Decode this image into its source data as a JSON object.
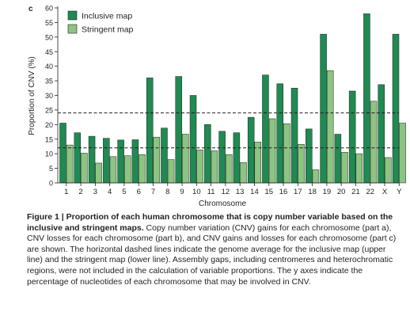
{
  "panel_label": "c",
  "caption": {
    "lead": "Figure 1",
    "separator": " | ",
    "title": "Proportion of each human chromosome that is copy number variable based on the inclusive and stringent maps.",
    "body": "Copy number variation (CNV) gains for each chromosome (part a), CNV losses for each chromosome (part b), and CNV gains and losses for each chromosome (part c) are shown. The horizontal dashed lines indicate the genome average for the inclusive map (upper line) and the stringent map (lower line). Assembly gaps, including centromeres and heterochromatic regions, were not included in the calculation of variable proportions. The y axes indicate the percentage of nucleotides of each chromosome that may be involved in CNV."
  },
  "colors": {
    "inclusive": "#1f8a52",
    "stringent": "#8cc481",
    "text": "#231f20"
  },
  "chart_data": {
    "type": "bar",
    "xlabel": "Chromosome",
    "ylabel": "Proportion of CNV (%)",
    "ylim": [
      0,
      60
    ],
    "yticks": [
      0,
      5,
      10,
      15,
      20,
      25,
      30,
      35,
      40,
      45,
      50,
      55,
      60
    ],
    "categories": [
      "1",
      "2",
      "3",
      "4",
      "5",
      "6",
      "7",
      "8",
      "9",
      "10",
      "11",
      "12",
      "13",
      "14",
      "15",
      "16",
      "17",
      "18",
      "19",
      "20",
      "21",
      "22",
      "X",
      "Y"
    ],
    "series": [
      {
        "name": "Inclusive map",
        "values": [
          20.5,
          17.2,
          16,
          15.3,
          14.7,
          14.8,
          36,
          18.8,
          36.5,
          30,
          20,
          17.7,
          17.2,
          22.5,
          37,
          34,
          32.5,
          18.5,
          51,
          16.7,
          31.5,
          58,
          33.7,
          51
        ]
      },
      {
        "name": "Stringent map",
        "values": [
          13,
          10.2,
          6.8,
          9,
          9.3,
          9.7,
          15.7,
          8,
          16.7,
          11.3,
          11,
          9.7,
          7,
          14,
          22,
          20.3,
          13.2,
          4.5,
          38.5,
          10.5,
          10,
          28,
          8.7,
          20.5
        ]
      }
    ],
    "reference_lines": [
      24,
      12
    ],
    "legend_position": "top-left",
    "grid": false
  }
}
